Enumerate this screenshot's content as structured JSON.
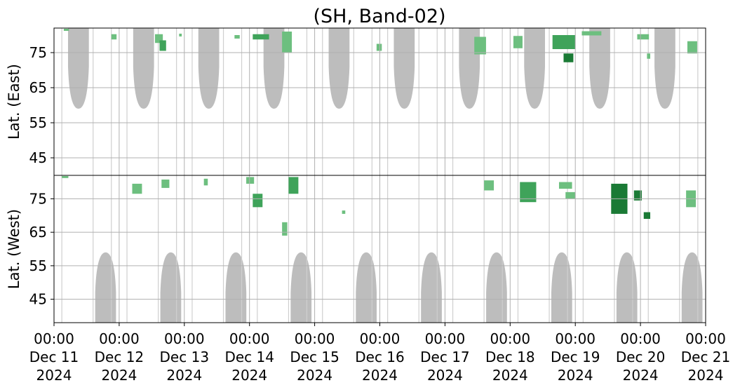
{
  "chart_data": {
    "type": "heatmap",
    "title": "(SH, Band-02)",
    "panels": [
      {
        "name": "east",
        "ylabel": "Lat. (East)",
        "ylim": [
          40,
          82
        ],
        "inverted": false,
        "yticks": [
          45,
          55,
          65,
          75
        ]
      },
      {
        "name": "west",
        "ylabel": "Lat. (West)",
        "ylim": [
          38,
          82
        ],
        "inverted": true,
        "yticks": [
          75,
          65,
          55,
          45
        ]
      }
    ],
    "x_start": "2024-12-11 00:00",
    "x_end": "2024-12-21 00:00",
    "x_ticks": [
      {
        "time": "00:00",
        "day": "Dec 11",
        "year": "2024"
      },
      {
        "time": "00:00",
        "day": "Dec 12",
        "year": "2024"
      },
      {
        "time": "00:00",
        "day": "Dec 13",
        "year": "2024"
      },
      {
        "time": "00:00",
        "day": "Dec 14",
        "year": "2024"
      },
      {
        "time": "00:00",
        "day": "Dec 15",
        "year": "2024"
      },
      {
        "time": "00:00",
        "day": "Dec 16",
        "year": "2024"
      },
      {
        "time": "00:00",
        "day": "Dec 17",
        "year": "2024"
      },
      {
        "time": "00:00",
        "day": "Dec 18",
        "year": "2024"
      },
      {
        "time": "00:00",
        "day": "Dec 19",
        "year": "2024"
      },
      {
        "time": "00:00",
        "day": "Dec 20",
        "year": "2024"
      },
      {
        "time": "00:00",
        "day": "Dec 21",
        "year": "2024"
      }
    ],
    "grid": true,
    "colors": {
      "coverage": "#bdbdbd",
      "detection_light": "#6dbf7f",
      "detection_mid": "#3fa35a",
      "detection_dark": "#1a7a35",
      "grid": "#b0b0b0"
    },
    "east_gaps": [
      {
        "center_day": "Dec 11 09:00",
        "lat_min": 59
      },
      {
        "center_day": "Dec 12 09:00",
        "lat_min": 59
      },
      {
        "center_day": "Dec 13 09:00",
        "lat_min": 59
      },
      {
        "center_day": "Dec 14 09:00",
        "lat_min": 59
      },
      {
        "center_day": "Dec 15 09:00",
        "lat_min": 59
      },
      {
        "center_day": "Dec 16 09:00",
        "lat_min": 59
      },
      {
        "center_day": "Dec 17 09:00",
        "lat_min": 59
      },
      {
        "center_day": "Dec 18 09:00",
        "lat_min": 59
      },
      {
        "center_day": "Dec 19 09:00",
        "lat_min": 59
      },
      {
        "center_day": "Dec 20 09:00",
        "lat_min": 59
      }
    ],
    "west_gaps": [
      {
        "center_day": "Dec 11 19:00",
        "lat_min": 59
      },
      {
        "center_day": "Dec 12 19:00",
        "lat_min": 59
      },
      {
        "center_day": "Dec 13 19:00",
        "lat_min": 59
      },
      {
        "center_day": "Dec 14 19:00",
        "lat_min": 59
      },
      {
        "center_day": "Dec 15 19:00",
        "lat_min": 59
      },
      {
        "center_day": "Dec 16 19:00",
        "lat_min": 59
      },
      {
        "center_day": "Dec 17 19:00",
        "lat_min": 59
      },
      {
        "center_day": "Dec 18 19:00",
        "lat_min": 59
      },
      {
        "center_day": "Dec 19 19:00",
        "lat_min": 59
      },
      {
        "center_day": "Dec 20 19:00",
        "lat_min": 59
      }
    ],
    "detections_east": [
      {
        "day": 0.15,
        "lat": 81.5,
        "w": 0.08,
        "h": 0.6,
        "level": 1
      },
      {
        "day": 0.88,
        "lat": 79.5,
        "w": 0.08,
        "h": 1.5,
        "level": 1
      },
      {
        "day": 1.55,
        "lat": 79,
        "w": 0.12,
        "h": 2.5,
        "level": 1
      },
      {
        "day": 1.62,
        "lat": 77,
        "w": 0.1,
        "h": 3,
        "level": 2
      },
      {
        "day": 1.92,
        "lat": 80,
        "w": 0.04,
        "h": 0.8,
        "level": 1
      },
      {
        "day": 2.77,
        "lat": 79.5,
        "w": 0.08,
        "h": 1,
        "level": 1
      },
      {
        "day": 3.05,
        "lat": 79.5,
        "w": 0.25,
        "h": 1.5,
        "level": 2
      },
      {
        "day": 3.5,
        "lat": 78,
        "w": 0.15,
        "h": 6,
        "level": 1
      },
      {
        "day": 4.95,
        "lat": 76.5,
        "w": 0.08,
        "h": 2,
        "level": 1
      },
      {
        "day": 6.45,
        "lat": 77,
        "w": 0.18,
        "h": 5,
        "level": 1
      },
      {
        "day": 7.05,
        "lat": 78,
        "w": 0.14,
        "h": 3.5,
        "level": 1
      },
      {
        "day": 7.65,
        "lat": 78,
        "w": 0.35,
        "h": 4,
        "level": 2
      },
      {
        "day": 7.82,
        "lat": 73.5,
        "w": 0.15,
        "h": 2.5,
        "level": 3
      },
      {
        "day": 8.1,
        "lat": 80.5,
        "w": 0.3,
        "h": 1.2,
        "level": 1
      },
      {
        "day": 8.95,
        "lat": 79.5,
        "w": 0.18,
        "h": 1.5,
        "level": 1
      },
      {
        "day": 9.1,
        "lat": 74,
        "w": 0.05,
        "h": 1.5,
        "level": 1
      },
      {
        "day": 9.72,
        "lat": 76.5,
        "w": 0.15,
        "h": 3.5,
        "level": 1
      }
    ],
    "detections_west": [
      {
        "day": 0.12,
        "lat": 81.5,
        "w": 0.1,
        "h": 0.6,
        "level": 1
      },
      {
        "day": 1.2,
        "lat": 78,
        "w": 0.15,
        "h": 3,
        "level": 1
      },
      {
        "day": 1.65,
        "lat": 79.5,
        "w": 0.12,
        "h": 2.5,
        "level": 1
      },
      {
        "day": 2.3,
        "lat": 80,
        "w": 0.06,
        "h": 2,
        "level": 1
      },
      {
        "day": 2.95,
        "lat": 80.5,
        "w": 0.12,
        "h": 2,
        "level": 1
      },
      {
        "day": 3.05,
        "lat": 74.5,
        "w": 0.15,
        "h": 4,
        "level": 2
      },
      {
        "day": 3.6,
        "lat": 79,
        "w": 0.15,
        "h": 5,
        "level": 2
      },
      {
        "day": 3.5,
        "lat": 66,
        "w": 0.08,
        "h": 4,
        "level": 1
      },
      {
        "day": 4.42,
        "lat": 71,
        "w": 0.05,
        "h": 1,
        "level": 1
      },
      {
        "day": 6.6,
        "lat": 79,
        "w": 0.15,
        "h": 3,
        "level": 1
      },
      {
        "day": 7.15,
        "lat": 77,
        "w": 0.25,
        "h": 6,
        "level": 2
      },
      {
        "day": 7.75,
        "lat": 79,
        "w": 0.2,
        "h": 2,
        "level": 1
      },
      {
        "day": 7.85,
        "lat": 76,
        "w": 0.15,
        "h": 2,
        "level": 1
      },
      {
        "day": 8.55,
        "lat": 75,
        "w": 0.25,
        "h": 9,
        "level": 3
      },
      {
        "day": 8.9,
        "lat": 76,
        "w": 0.12,
        "h": 3,
        "level": 3
      },
      {
        "day": 9.05,
        "lat": 70,
        "w": 0.1,
        "h": 2,
        "level": 3
      },
      {
        "day": 9.7,
        "lat": 75,
        "w": 0.15,
        "h": 5,
        "level": 1
      }
    ]
  }
}
